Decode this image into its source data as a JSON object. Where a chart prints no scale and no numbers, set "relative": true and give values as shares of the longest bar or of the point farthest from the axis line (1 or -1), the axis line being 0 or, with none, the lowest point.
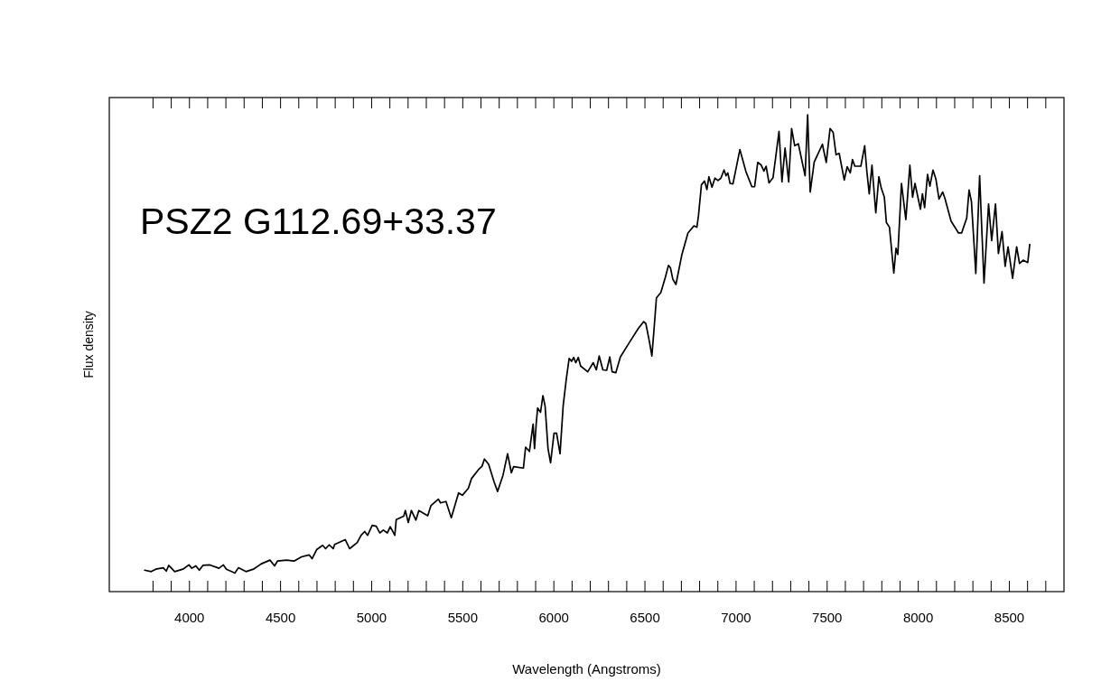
{
  "chart_data": {
    "type": "line",
    "title": "PSZ2 G112.69+33.37",
    "xlabel": "Wavelength (Angstroms)",
    "ylabel": "Flux density",
    "relative": true,
    "color": "#000000",
    "xlim": [
      3560,
      8800
    ],
    "xticks": [
      {
        "value": 3800,
        "label": null
      },
      {
        "value": 3900,
        "label": null
      },
      4000,
      {
        "value": 4100,
        "label": null
      },
      {
        "value": 4200,
        "label": null
      },
      {
        "value": 4300,
        "label": null
      },
      {
        "value": 4400,
        "label": null
      },
      4500,
      {
        "value": 4600,
        "label": null
      },
      {
        "value": 4700,
        "label": null
      },
      {
        "value": 4800,
        "label": null
      },
      {
        "value": 4900,
        "label": null
      },
      5000,
      {
        "value": 5100,
        "label": null
      },
      {
        "value": 5200,
        "label": null
      },
      {
        "value": 5300,
        "label": null
      },
      {
        "value": 5400,
        "label": null
      },
      5500,
      {
        "value": 5600,
        "label": null
      },
      {
        "value": 5700,
        "label": null
      },
      {
        "value": 5800,
        "label": null
      },
      {
        "value": 5900,
        "label": null
      },
      6000,
      {
        "value": 6100,
        "label": null
      },
      {
        "value": 6200,
        "label": null
      },
      {
        "value": 6300,
        "label": null
      },
      {
        "value": 6400,
        "label": null
      },
      6500,
      {
        "value": 6600,
        "label": null
      },
      {
        "value": 6700,
        "label": null
      },
      {
        "value": 6800,
        "label": null
      },
      {
        "value": 6900,
        "label": null
      },
      7000,
      {
        "value": 7100,
        "label": null
      },
      {
        "value": 7200,
        "label": null
      },
      {
        "value": 7300,
        "label": null
      },
      {
        "value": 7400,
        "label": null
      },
      7500,
      {
        "value": 7600,
        "label": null
      },
      {
        "value": 7700,
        "label": null
      },
      {
        "value": 7800,
        "label": null
      },
      {
        "value": 7900,
        "label": null
      },
      8000,
      {
        "value": 8100,
        "label": null
      },
      {
        "value": 8200,
        "label": null
      },
      {
        "value": 8300,
        "label": null
      },
      {
        "value": 8400,
        "label": null
      },
      8500,
      {
        "value": 8600,
        "label": null
      },
      {
        "value": 8700,
        "label": null
      }
    ],
    "x": [
      3754,
      3790,
      3815,
      3856,
      3873,
      3886,
      3919,
      3964,
      3997,
      4013,
      4035,
      4054,
      4074,
      4112,
      4162,
      4186,
      4203,
      4249,
      4269,
      4310,
      4351,
      4393,
      4442,
      4467,
      4483,
      4533,
      4574,
      4615,
      4657,
      4673,
      4698,
      4731,
      4747,
      4767,
      4789,
      4797,
      4855,
      4879,
      4921,
      4942,
      4962,
      4978,
      5003,
      5025,
      5045,
      5064,
      5086,
      5102,
      5127,
      5135,
      5176,
      5185,
      5201,
      5218,
      5243,
      5259,
      5308,
      5325,
      5366,
      5378,
      5408,
      5437,
      5477,
      5498,
      5531,
      5548,
      5589,
      5606,
      5619,
      5642,
      5672,
      5691,
      5721,
      5746,
      5767,
      5779,
      5833,
      5845,
      5866,
      5886,
      5894,
      5903,
      5911,
      5927,
      5940,
      5952,
      5968,
      5982,
      6001,
      6015,
      6034,
      6051,
      6068,
      6084,
      6097,
      6109,
      6120,
      6134,
      6147,
      6186,
      6216,
      6233,
      6249,
      6269,
      6290,
      6307,
      6320,
      6340,
      6365,
      6414,
      6464,
      6493,
      6505,
      6526,
      6538,
      6549,
      6563,
      6587,
      6612,
      6629,
      6640,
      6653,
      6670,
      6703,
      6736,
      6769,
      6785,
      6794,
      6810,
      6827,
      6840,
      6851,
      6868,
      6884,
      6901,
      6917,
      6934,
      6945,
      6955,
      6967,
      6983,
      7021,
      7054,
      7087,
      7102,
      7119,
      7137,
      7153,
      7165,
      7181,
      7203,
      7236,
      7252,
      7269,
      7289,
      7305,
      7322,
      7342,
      7379,
      7393,
      7407,
      7429,
      7474,
      7495,
      7516,
      7533,
      7549,
      7566,
      7594,
      7610,
      7627,
      7639,
      7652,
      7685,
      7706,
      7718,
      7731,
      7746,
      7767,
      7784,
      7797,
      7814,
      7825,
      7842,
      7866,
      7878,
      7888,
      7908,
      7932,
      7954,
      7969,
      7982,
      8012,
      8023,
      8035,
      8051,
      8064,
      8081,
      8097,
      8114,
      8134,
      8147,
      8180,
      8221,
      8238,
      8266,
      8279,
      8292,
      8316,
      8337,
      8348,
      8361,
      8386,
      8403,
      8424,
      8440,
      8460,
      8477,
      8493,
      8518,
      8540,
      8556,
      8576,
      8601,
      8612
    ],
    "values": [
      0.045,
      0.042,
      0.047,
      0.05,
      0.043,
      0.055,
      0.042,
      0.047,
      0.056,
      0.049,
      0.054,
      0.045,
      0.055,
      0.056,
      0.049,
      0.056,
      0.047,
      0.039,
      0.05,
      0.042,
      0.047,
      0.058,
      0.066,
      0.054,
      0.064,
      0.066,
      0.064,
      0.073,
      0.077,
      0.069,
      0.088,
      0.097,
      0.09,
      0.098,
      0.09,
      0.099,
      0.109,
      0.09,
      0.103,
      0.118,
      0.126,
      0.118,
      0.139,
      0.137,
      0.123,
      0.129,
      0.123,
      0.136,
      0.118,
      0.151,
      0.158,
      0.17,
      0.145,
      0.17,
      0.15,
      0.17,
      0.159,
      0.18,
      0.194,
      0.186,
      0.189,
      0.155,
      0.207,
      0.202,
      0.217,
      0.237,
      0.257,
      0.263,
      0.278,
      0.267,
      0.23,
      0.21,
      0.244,
      0.289,
      0.249,
      0.262,
      0.259,
      0.303,
      0.294,
      0.351,
      0.3,
      0.351,
      0.385,
      0.376,
      0.411,
      0.389,
      0.3,
      0.27,
      0.332,
      0.332,
      0.289,
      0.389,
      0.445,
      0.489,
      0.483,
      0.491,
      0.48,
      0.491,
      0.473,
      0.461,
      0.48,
      0.465,
      0.494,
      0.465,
      0.464,
      0.492,
      0.461,
      0.459,
      0.492,
      0.522,
      0.552,
      0.566,
      0.562,
      0.521,
      0.494,
      0.546,
      0.616,
      0.627,
      0.659,
      0.684,
      0.679,
      0.655,
      0.644,
      0.707,
      0.752,
      0.767,
      0.764,
      0.789,
      0.853,
      0.861,
      0.843,
      0.87,
      0.848,
      0.867,
      0.862,
      0.867,
      0.884,
      0.872,
      0.878,
      0.856,
      0.855,
      0.927,
      0.881,
      0.849,
      0.849,
      0.9,
      0.895,
      0.882,
      0.892,
      0.857,
      0.868,
      0.965,
      0.859,
      0.93,
      0.859,
      0.971,
      0.935,
      0.939,
      0.872,
      1.0,
      0.838,
      0.901,
      0.938,
      0.9,
      0.971,
      0.963,
      0.916,
      0.919,
      0.863,
      0.891,
      0.878,
      0.906,
      0.892,
      0.892,
      0.935,
      0.881,
      0.834,
      0.894,
      0.794,
      0.87,
      0.846,
      0.827,
      0.774,
      0.764,
      0.668,
      0.72,
      0.707,
      0.856,
      0.78,
      0.894,
      0.827,
      0.856,
      0.802,
      0.834,
      0.805,
      0.875,
      0.85,
      0.884,
      0.865,
      0.823,
      0.838,
      0.824,
      0.777,
      0.752,
      0.752,
      0.783,
      0.842,
      0.818,
      0.667,
      0.872,
      0.767,
      0.647,
      0.813,
      0.736,
      0.813,
      0.709,
      0.755,
      0.682,
      0.723,
      0.657,
      0.723,
      0.688,
      0.695,
      0.69,
      0.728
    ]
  }
}
